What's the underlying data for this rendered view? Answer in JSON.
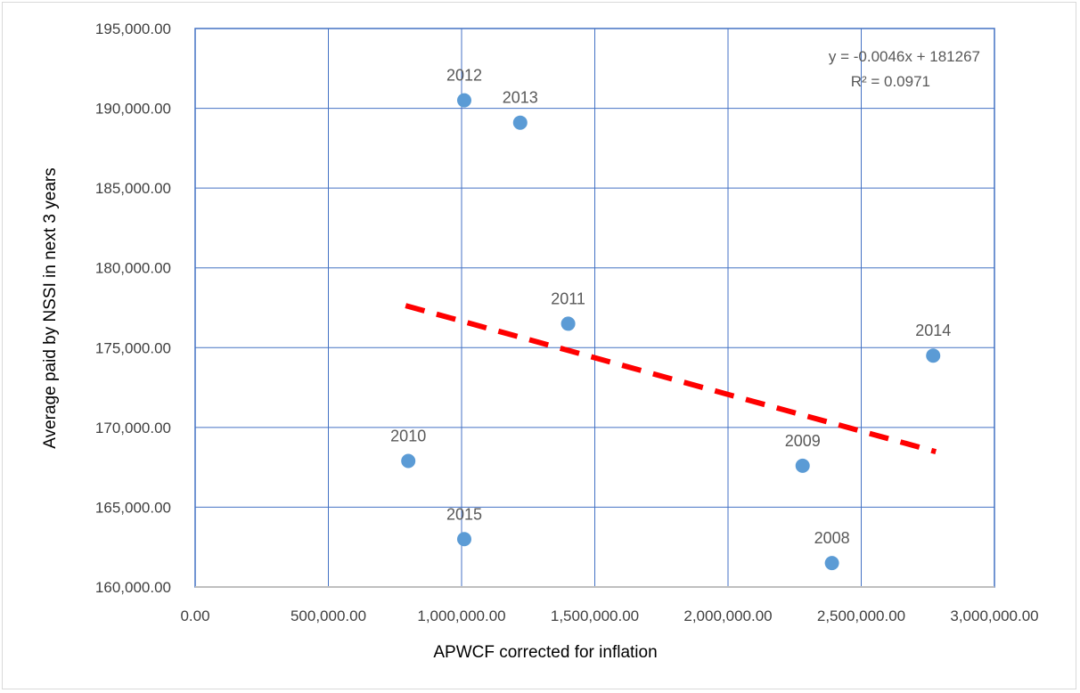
{
  "chart_data": {
    "type": "scatter",
    "title": "",
    "xlabel": "APWCF corrected for inflation",
    "ylabel": "Average paid by NSSI in next 3 years",
    "xlim": [
      0,
      3000000
    ],
    "ylim": [
      160000,
      195000
    ],
    "x_ticks": [
      "0.00",
      "500,000.00",
      "1,000,000.00",
      "1,500,000.00",
      "2,000,000.00",
      "2,500,000.00",
      "3,000,000.00"
    ],
    "y_ticks": [
      "195,000.00",
      "190,000.00",
      "185,000.00",
      "180,000.00",
      "175,000.00",
      "170,000.00",
      "165,000.00",
      "160,000.00"
    ],
    "grid": true,
    "legend": "none",
    "marker_color": "#5b9bd5",
    "trendline_color": "#ff0000",
    "points": [
      {
        "label": "2012",
        "x": 1010000,
        "y": 190500
      },
      {
        "label": "2013",
        "x": 1220000,
        "y": 189100
      },
      {
        "label": "2011",
        "x": 1400000,
        "y": 176500
      },
      {
        "label": "2014",
        "x": 2770000,
        "y": 174500
      },
      {
        "label": "2010",
        "x": 800000,
        "y": 167900
      },
      {
        "label": "2009",
        "x": 2280000,
        "y": 167600
      },
      {
        "label": "2015",
        "x": 1010000,
        "y": 163000
      },
      {
        "label": "2008",
        "x": 2390000,
        "y": 161500
      }
    ],
    "trendline": {
      "slope": -0.0046,
      "intercept": 181267,
      "x_start": 790000,
      "x_end": 2780000
    },
    "equation": "y = -0.0046x + 181267",
    "r_squared": "R² = 0.0971"
  }
}
